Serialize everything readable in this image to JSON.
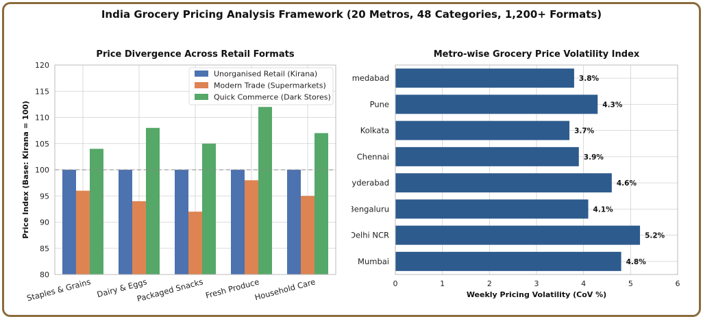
{
  "suptitle": "India Grocery Pricing Analysis Framework (20 Metros, 48 Categories, 1,200+ Formats)",
  "chart_data": [
    {
      "type": "bar",
      "title": "Price Divergence Across Retail Formats",
      "ylabel": "Price Index (Base: Kirana = 100)",
      "xlabel": "",
      "categories": [
        "Staples & Grains",
        "Dairy & Eggs",
        "Packaged Snacks",
        "Fresh Produce",
        "Household Care"
      ],
      "series": [
        {
          "name": "Unorganised Retail (Kirana)",
          "color": "#4c72b0",
          "values": [
            100,
            100,
            100,
            100,
            100
          ]
        },
        {
          "name": "Modern Trade (Supermarkets)",
          "color": "#dd8452",
          "values": [
            96,
            94,
            92,
            98,
            95
          ]
        },
        {
          "name": "Quick Commerce (Dark Stores)",
          "color": "#55a868",
          "values": [
            104,
            108,
            105,
            112,
            107
          ]
        }
      ],
      "ylim": [
        80,
        120
      ],
      "yticks": [
        80,
        85,
        90,
        95,
        100,
        105,
        110,
        115,
        120
      ],
      "baseline": 100,
      "grid": true,
      "legend": "top-right"
    },
    {
      "type": "bar",
      "orientation": "horizontal",
      "title": "Metro-wise Grocery Price Volatility Index",
      "xlabel": "Weekly Pricing Volatility (CoV %)",
      "ylabel": "",
      "categories": [
        "Mumbai",
        "Delhi NCR",
        "Bengaluru",
        "Hyderabad",
        "Chennai",
        "Kolkata",
        "Pune",
        "Ahmedabad"
      ],
      "values": [
        4.8,
        5.2,
        4.1,
        4.6,
        3.9,
        3.7,
        4.3,
        3.8
      ],
      "labels": [
        "4.8%",
        "5.2%",
        "4.1%",
        "4.6%",
        "3.9%",
        "3.7%",
        "4.3%",
        "3.8%"
      ],
      "color": "#2e5b8e",
      "xlim": [
        0,
        6
      ],
      "xticks": [
        0,
        1,
        2,
        3,
        4,
        5,
        6
      ],
      "grid": true
    }
  ]
}
